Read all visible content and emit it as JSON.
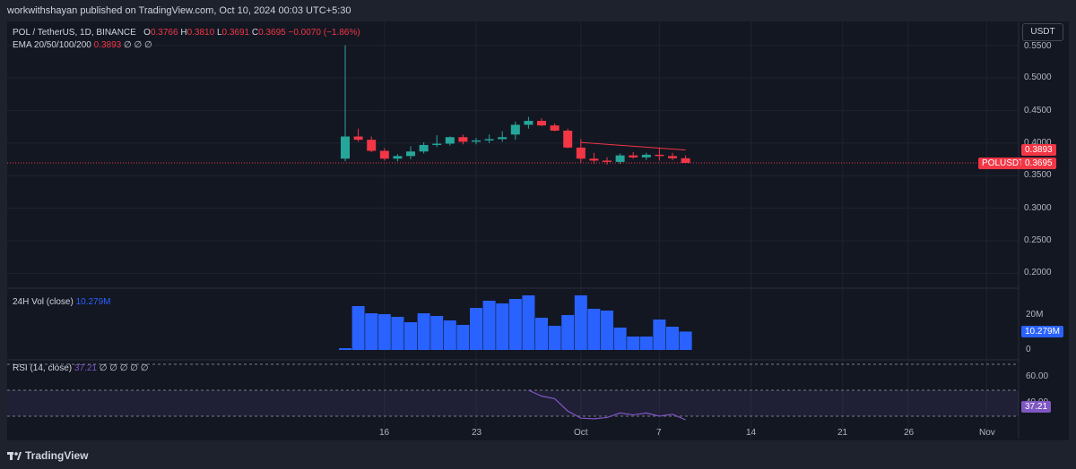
{
  "header": {
    "published": "workwithshayan published on TradingView.com, Oct 10, 2024 00:03 UTC+5:30"
  },
  "main": {
    "symbol": "POL / TetherUS, 1D, BINANCE",
    "ohlc": {
      "o_label": "O",
      "o": "0.3766",
      "h_label": "H",
      "h": "0.3810",
      "l_label": "L",
      "l": "0.3691",
      "c_label": "C",
      "c": "0.3695",
      "chg": "−0.0070 (−1.86%)"
    },
    "ema": {
      "label": "EMA 20/50/100/200",
      "value": "0.3893",
      "nulls": "∅ ∅ ∅"
    },
    "currency_button": "USDT",
    "price_ticks": [
      "0.5500",
      "0.5000",
      "0.4500",
      "0.4000",
      "0.3500",
      "0.3000",
      "0.2500",
      "0.2000"
    ],
    "ema_badge": "0.3893",
    "price_badge_symbol": "POLUSDT",
    "price_badge_value": "0.3695"
  },
  "volume": {
    "label": "24H Vol (close)",
    "value": "10.279M",
    "ticks": [
      "20M",
      "0"
    ],
    "badge": "10.279M"
  },
  "rsi": {
    "label": "RSI (14, close)",
    "value": "37.21",
    "nulls": "∅ ∅ ∅ ∅ ∅",
    "ticks": [
      "60.00",
      "40.00"
    ],
    "badge": "37.21"
  },
  "x_axis": [
    "16",
    "23",
    "Oct",
    "7",
    "14",
    "21",
    "26",
    "Nov"
  ],
  "footer": {
    "brand": "TradingView"
  },
  "colors": {
    "up": "#26a69a",
    "down": "#f23645",
    "volume": "#2962ff",
    "rsi": "#7e57c2",
    "ema": "#f23645",
    "bg": "#131722"
  },
  "chart_data": [
    {
      "type": "candlestick",
      "title": "POL / TetherUS, 1D, BINANCE",
      "x": [
        "2024-09-13",
        "2024-09-14",
        "2024-09-15",
        "2024-09-16",
        "2024-09-17",
        "2024-09-18",
        "2024-09-19",
        "2024-09-20",
        "2024-09-21",
        "2024-09-22",
        "2024-09-23",
        "2024-09-24",
        "2024-09-25",
        "2024-09-26",
        "2024-09-27",
        "2024-09-28",
        "2024-09-29",
        "2024-09-30",
        "2024-10-01",
        "2024-10-02",
        "2024-10-03",
        "2024-10-04",
        "2024-10-05",
        "2024-10-06",
        "2024-10-07",
        "2024-10-08",
        "2024-10-09"
      ],
      "open": [
        0.376,
        0.41,
        0.405,
        0.388,
        0.376,
        0.38,
        0.387,
        0.397,
        0.399,
        0.409,
        0.402,
        0.404,
        0.406,
        0.413,
        0.428,
        0.434,
        0.427,
        0.419,
        0.393,
        0.376,
        0.373,
        0.371,
        0.381,
        0.378,
        0.382,
        0.38,
        0.3766
      ],
      "high": [
        0.55,
        0.422,
        0.41,
        0.392,
        0.383,
        0.395,
        0.401,
        0.412,
        0.41,
        0.413,
        0.408,
        0.413,
        0.418,
        0.433,
        0.44,
        0.438,
        0.43,
        0.422,
        0.406,
        0.385,
        0.378,
        0.384,
        0.386,
        0.385,
        0.392,
        0.385,
        0.381
      ],
      "low": [
        0.372,
        0.402,
        0.386,
        0.373,
        0.372,
        0.375,
        0.384,
        0.394,
        0.396,
        0.398,
        0.398,
        0.4,
        0.402,
        0.405,
        0.422,
        0.426,
        0.418,
        0.392,
        0.37,
        0.368,
        0.367,
        0.368,
        0.376,
        0.374,
        0.373,
        0.374,
        0.3691
      ],
      "close": [
        0.41,
        0.405,
        0.388,
        0.376,
        0.38,
        0.387,
        0.397,
        0.399,
        0.409,
        0.402,
        0.404,
        0.406,
        0.409,
        0.428,
        0.434,
        0.427,
        0.419,
        0.393,
        0.376,
        0.373,
        0.371,
        0.381,
        0.378,
        0.382,
        0.38,
        0.3766,
        0.3695
      ],
      "ema_x": [
        "2024-10-01",
        "2024-10-09"
      ],
      "ema_y": [
        0.401,
        0.3893
      ],
      "ylim": [
        0.18,
        0.56
      ]
    },
    {
      "type": "bar",
      "title": "24H Vol (close)",
      "x": [
        "2024-09-13",
        "2024-09-14",
        "2024-09-15",
        "2024-09-16",
        "2024-09-17",
        "2024-09-18",
        "2024-09-19",
        "2024-09-20",
        "2024-09-21",
        "2024-09-22",
        "2024-09-23",
        "2024-09-24",
        "2024-09-25",
        "2024-09-26",
        "2024-09-27",
        "2024-09-28",
        "2024-09-29",
        "2024-09-30",
        "2024-10-01",
        "2024-10-02",
        "2024-10-03",
        "2024-10-04",
        "2024-10-05",
        "2024-10-06",
        "2024-10-07",
        "2024-10-08",
        "2024-10-09"
      ],
      "values": [
        1.0,
        24.5,
        20.5,
        20.0,
        18.5,
        15.5,
        20.5,
        19.0,
        16.5,
        14.0,
        23.5,
        27.5,
        26.0,
        28.5,
        30.5,
        18.0,
        13.5,
        19.5,
        30.5,
        23.0,
        22.0,
        12.5,
        7.5,
        7.5,
        17.0,
        13.0,
        10.279
      ],
      "ylim": [
        0,
        34
      ]
    },
    {
      "type": "line",
      "title": "RSI (14, close)",
      "x": [
        "2024-09-27",
        "2024-09-28",
        "2024-09-29",
        "2024-09-30",
        "2024-10-01",
        "2024-10-02",
        "2024-10-03",
        "2024-10-04",
        "2024-10-05",
        "2024-10-06",
        "2024-10-07",
        "2024-10-08",
        "2024-10-09"
      ],
      "values": [
        60.0,
        55.5,
        53.5,
        44.0,
        38.5,
        38.0,
        39.0,
        42.5,
        41.0,
        42.5,
        40.0,
        41.5,
        37.21
      ],
      "ylim": [
        30,
        72
      ]
    }
  ]
}
